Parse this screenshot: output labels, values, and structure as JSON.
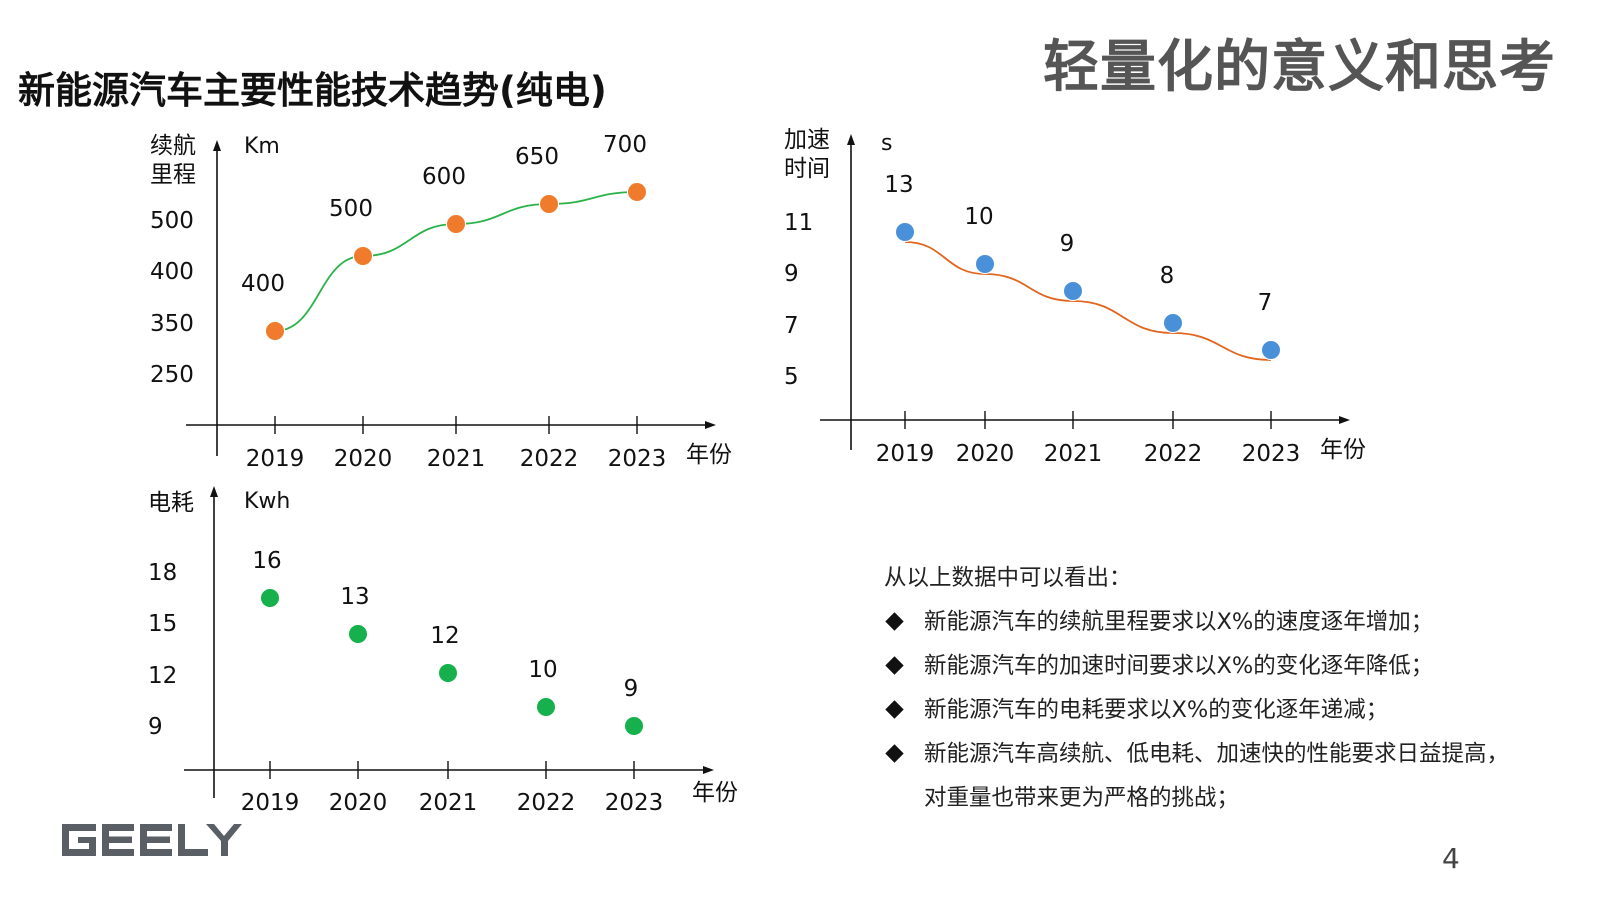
{
  "header": {
    "topic": "轻量化的意义和思考",
    "title": "新能源汽车主要性能技术趋势(纯电)"
  },
  "chart_data": [
    {
      "id": "range",
      "type": "scatter",
      "ylabel": "续航里程",
      "yunit": "Km",
      "xunit": "年份",
      "yticks": [
        "500",
        "400",
        "350",
        "250"
      ],
      "categories": [
        "2019",
        "2020",
        "2021",
        "2022",
        "2023"
      ],
      "values": [
        400,
        500,
        600,
        650,
        700
      ],
      "point_labels": [
        "400",
        "500",
        "600",
        "650",
        "700"
      ],
      "trendline": true,
      "colors": {
        "point": "#F07B2C",
        "trend": "#2CB24A"
      }
    },
    {
      "id": "accel",
      "type": "scatter",
      "ylabel": "加速时间",
      "yunit": "s",
      "xunit": "年份",
      "yticks": [
        "11",
        "9",
        "7",
        "5"
      ],
      "categories": [
        "2019",
        "2020",
        "2021",
        "2022",
        "2023"
      ],
      "values": [
        13,
        10,
        9,
        8,
        7
      ],
      "point_labels": [
        "13",
        "10",
        "9",
        "8",
        "7"
      ],
      "trendline": true,
      "colors": {
        "point": "#4A90D9",
        "trend": "#E0651F"
      }
    },
    {
      "id": "energy",
      "type": "scatter",
      "ylabel": "电耗",
      "yunit": "Kwh",
      "xunit": "年份",
      "yticks": [
        "18",
        "15",
        "12",
        "9"
      ],
      "categories": [
        "2019",
        "2020",
        "2021",
        "2022",
        "2023"
      ],
      "values": [
        16,
        13,
        12,
        10,
        9
      ],
      "point_labels": [
        "16",
        "13",
        "12",
        "10",
        "9"
      ],
      "trendline": false,
      "colors": {
        "point": "#16B04C"
      }
    }
  ],
  "summary": {
    "lead": "从以上数据中可以看出：",
    "bullets": [
      "新能源汽车的续航里程要求以X%的速度逐年增加；",
      "新能源汽车的加速时间要求以X%的变化逐年降低；",
      "新能源汽车的电耗要求以X%的变化逐年递减；",
      "新能源汽车高续航、低电耗、加速快的性能要求日益提高，对重量也带来更为严格的挑战；"
    ]
  },
  "footer": {
    "logo": "GEELY",
    "page": "4"
  }
}
